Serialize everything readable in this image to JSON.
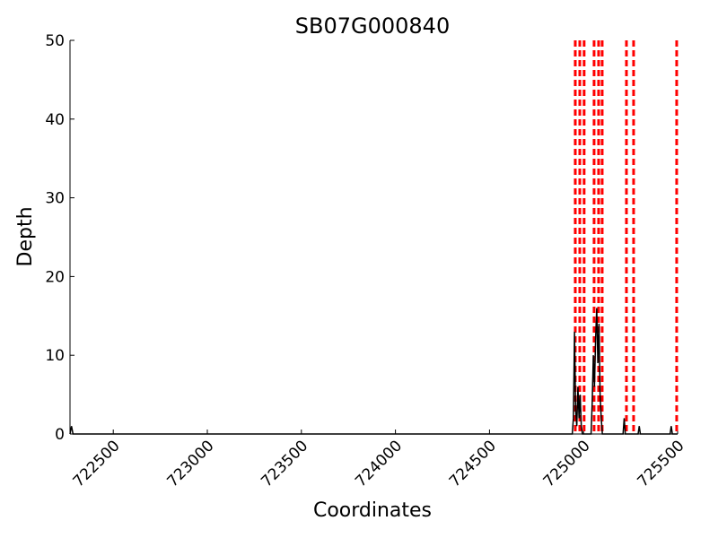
{
  "chart_data": {
    "type": "line",
    "title": "SB07G000840",
    "xlabel": "Coordinates",
    "ylabel": "Depth",
    "x": [
      722270,
      722278,
      722286,
      724940,
      724946,
      724952,
      724958,
      724964,
      724970,
      724976,
      724982,
      724988,
      724994,
      725000,
      725040,
      725046,
      725052,
      725058,
      725064,
      725070,
      725076,
      725082,
      725088,
      725094,
      725100,
      725210,
      725216,
      725222,
      725290,
      725296,
      725302,
      725460,
      725466,
      725472,
      725500
    ],
    "series": [
      {
        "color": "#000000",
        "values": [
          0,
          1,
          0,
          0,
          2,
          13,
          3,
          1,
          6,
          2,
          5,
          1,
          0,
          0,
          0,
          4,
          10,
          6,
          12,
          16,
          9,
          14,
          5,
          2,
          0,
          0,
          2,
          0,
          0,
          1,
          0,
          0,
          1,
          0,
          0
        ]
      }
    ],
    "vlines": {
      "color": "#ff0000",
      "x": [
        724956,
        724980,
        725003,
        725056,
        725080,
        725099,
        725228,
        725266,
        725495
      ]
    },
    "xlim": [
      722270,
      725500
    ],
    "ylim": [
      0,
      50
    ],
    "xticks": [
      722500,
      723000,
      723500,
      724000,
      724500,
      725000,
      725500
    ],
    "yticks": [
      0,
      10,
      20,
      30,
      40,
      50
    ]
  }
}
